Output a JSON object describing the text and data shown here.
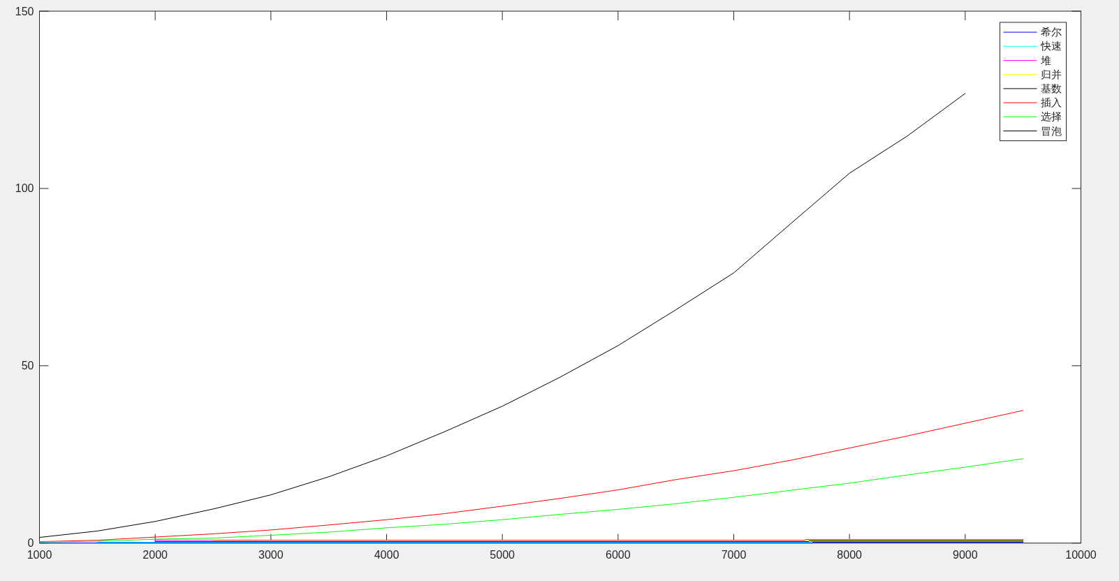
{
  "chart_data": {
    "type": "line",
    "x": [
      1000,
      1500,
      2000,
      2500,
      3000,
      3500,
      4000,
      4500,
      5000,
      5500,
      6000,
      6500,
      7000,
      7500,
      8000,
      8500,
      9000,
      9500
    ],
    "xlim": [
      1000,
      10000
    ],
    "xticks": [
      1000,
      2000,
      3000,
      4000,
      5000,
      6000,
      7000,
      8000,
      9000,
      10000
    ],
    "ylim": [
      0,
      150
    ],
    "yticks": [
      0,
      50,
      100,
      150
    ],
    "grid": false,
    "legend": "top right",
    "line_style": "solid",
    "series": [
      {
        "name": "希尔",
        "color": "#0000ff",
        "values": [
          0,
          0,
          0,
          0,
          0,
          0,
          0,
          0,
          0,
          0.1,
          0.1,
          0.1,
          0.1,
          0.1,
          0.2,
          0.2,
          0.2,
          0.2
        ]
      },
      {
        "name": "快速",
        "color": "#00ffff",
        "values": [
          null,
          0.2,
          0.2,
          0.2,
          0.2,
          0.2,
          0.2,
          0.2,
          0.2,
          0.3,
          0.3,
          0.3,
          0.3,
          0.3,
          0.4,
          0.4,
          0.4,
          0.4
        ]
      },
      {
        "name": "堆",
        "color": "#ff00ff",
        "values": [
          null,
          null,
          0.8,
          0.8,
          0.8,
          0.8,
          0.8,
          0.8,
          0.8,
          0.9,
          0.9,
          0.9,
          0.9,
          0.9,
          1.0,
          1.0,
          1.0,
          1.0
        ]
      },
      {
        "name": "归并",
        "color": "#ffff00",
        "values": [
          null,
          null,
          null,
          0.6,
          0.6,
          0.6,
          0.6,
          0.6,
          0.6,
          0.7,
          0.7,
          0.7,
          0.7,
          0.7,
          0.8,
          0.8,
          0.8,
          0.8
        ]
      },
      {
        "name": "基数",
        "color": "#000000",
        "values": [
          null,
          null,
          0.4,
          0.4,
          0.4,
          0.4,
          0.4,
          0.4,
          0.4,
          0.5,
          0.5,
          0.5,
          0.5,
          0.5,
          0.6,
          0.6,
          0.6,
          0.6
        ]
      },
      {
        "name": "插入",
        "color": "#ff0000",
        "values": [
          0.4,
          0.8,
          1.7,
          2.6,
          3.7,
          5.1,
          6.6,
          8.3,
          10.4,
          12.6,
          15.0,
          17.9,
          20.4,
          23.4,
          26.8,
          30.2,
          33.8,
          37.4
        ]
      },
      {
        "name": "选择",
        "color": "#00ff00",
        "values": [
          0.3,
          0.5,
          1.1,
          1.4,
          2.2,
          3.1,
          4.3,
          5.3,
          6.6,
          8.1,
          9.5,
          11.1,
          12.9,
          14.9,
          16.9,
          19.2,
          21.4,
          23.8
        ]
      },
      {
        "name": "冒泡",
        "color": "#000000",
        "values": [
          1.6,
          3.4,
          6.1,
          9.6,
          13.6,
          18.7,
          24.6,
          31.4,
          38.6,
          46.8,
          55.7,
          65.8,
          76.2,
          90.3,
          104.3,
          114.8,
          126.8,
          null
        ]
      }
    ]
  }
}
